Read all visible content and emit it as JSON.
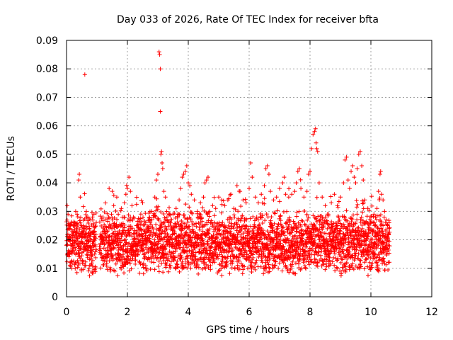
{
  "chart_data": {
    "type": "scatter",
    "title": "Day 033 of 2026, Rate Of TEC Index for receiver bfta",
    "xlabel": "GPS time / hours",
    "ylabel": "ROTI / TECUs",
    "xlim": [
      0,
      12
    ],
    "ylim": [
      0,
      0.09
    ],
    "xticks": [
      0,
      2,
      4,
      6,
      8,
      10,
      12
    ],
    "yticks": [
      0,
      0.01,
      0.02,
      0.03,
      0.04,
      0.05,
      0.06,
      0.07,
      0.08,
      0.09
    ],
    "xtick_labels": [
      "0",
      "2",
      "4",
      "6",
      "8",
      "10",
      "12"
    ],
    "ytick_labels": [
      "0",
      "0.01",
      "0.02",
      "0.03",
      "0.04",
      "0.05",
      "0.06",
      "0.07",
      "0.08",
      "0.09"
    ],
    "grid": true,
    "marker": "+",
    "color": "#ff0000",
    "data_gaps_hours": [
      [
        0.98,
        1.08
      ],
      [
        10.62,
        12
      ]
    ],
    "series": [
      {
        "name": "ROTI",
        "points": [
          [
            0.02,
            0.032
          ],
          [
            0.05,
            0.029
          ],
          [
            0.1,
            0.021
          ],
          [
            0.14,
            0.018
          ],
          [
            0.18,
            0.022
          ],
          [
            0.25,
            0.026
          ],
          [
            0.3,
            0.03
          ],
          [
            0.35,
            0.029
          ],
          [
            0.4,
            0.041
          ],
          [
            0.42,
            0.043
          ],
          [
            0.45,
            0.035
          ],
          [
            0.5,
            0.025
          ],
          [
            0.55,
            0.022
          ],
          [
            0.6,
            0.078
          ],
          [
            0.65,
            0.03
          ],
          [
            0.7,
            0.028
          ],
          [
            0.75,
            0.024
          ],
          [
            0.8,
            0.027
          ],
          [
            0.85,
            0.028
          ],
          [
            0.9,
            0.029
          ],
          [
            1.2,
            0.028
          ],
          [
            1.4,
            0.038
          ],
          [
            1.5,
            0.037
          ],
          [
            1.55,
            0.032
          ],
          [
            1.65,
            0.035
          ],
          [
            1.7,
            0.029
          ],
          [
            1.8,
            0.031
          ],
          [
            1.9,
            0.033
          ],
          [
            1.95,
            0.036
          ],
          [
            2.0,
            0.038
          ],
          [
            2.05,
            0.042
          ],
          [
            2.1,
            0.037
          ],
          [
            2.15,
            0.032
          ],
          [
            2.2,
            0.028
          ],
          [
            2.3,
            0.025
          ],
          [
            2.4,
            0.027
          ],
          [
            2.5,
            0.033
          ],
          [
            2.6,
            0.026
          ],
          [
            2.7,
            0.024
          ],
          [
            2.8,
            0.03
          ],
          [
            2.9,
            0.035
          ],
          [
            2.95,
            0.041
          ],
          [
            3.0,
            0.043
          ],
          [
            3.04,
            0.086
          ],
          [
            3.06,
            0.085
          ],
          [
            3.08,
            0.08
          ],
          [
            3.08,
            0.065
          ],
          [
            3.1,
            0.05
          ],
          [
            3.12,
            0.051
          ],
          [
            3.14,
            0.047
          ],
          [
            3.16,
            0.045
          ],
          [
            3.2,
            0.037
          ],
          [
            3.25,
            0.035
          ],
          [
            3.3,
            0.028
          ],
          [
            3.4,
            0.026
          ],
          [
            3.5,
            0.029
          ],
          [
            3.6,
            0.031
          ],
          [
            3.7,
            0.034
          ],
          [
            3.75,
            0.038
          ],
          [
            3.8,
            0.042
          ],
          [
            3.85,
            0.043
          ],
          [
            3.9,
            0.044
          ],
          [
            3.95,
            0.046
          ],
          [
            4.0,
            0.04
          ],
          [
            4.05,
            0.039
          ],
          [
            4.1,
            0.036
          ],
          [
            4.2,
            0.034
          ],
          [
            4.3,
            0.03
          ],
          [
            4.4,
            0.033
          ],
          [
            4.5,
            0.035
          ],
          [
            4.55,
            0.04
          ],
          [
            4.6,
            0.041
          ],
          [
            4.65,
            0.042
          ],
          [
            4.7,
            0.03
          ],
          [
            4.8,
            0.032
          ],
          [
            4.9,
            0.031
          ],
          [
            5.0,
            0.035
          ],
          [
            5.1,
            0.034
          ],
          [
            5.2,
            0.032
          ],
          [
            5.3,
            0.034
          ],
          [
            5.4,
            0.036
          ],
          [
            5.5,
            0.031
          ],
          [
            5.6,
            0.039
          ],
          [
            5.7,
            0.037
          ],
          [
            5.8,
            0.034
          ],
          [
            5.9,
            0.033
          ],
          [
            6.0,
            0.038
          ],
          [
            6.05,
            0.047
          ],
          [
            6.1,
            0.042
          ],
          [
            6.2,
            0.035
          ],
          [
            6.3,
            0.033
          ],
          [
            6.4,
            0.036
          ],
          [
            6.5,
            0.039
          ],
          [
            6.55,
            0.045
          ],
          [
            6.6,
            0.046
          ],
          [
            6.65,
            0.043
          ],
          [
            6.7,
            0.037
          ],
          [
            6.8,
            0.034
          ],
          [
            6.9,
            0.035
          ],
          [
            7.0,
            0.038
          ],
          [
            7.1,
            0.04
          ],
          [
            7.15,
            0.042
          ],
          [
            7.2,
            0.036
          ],
          [
            7.3,
            0.035
          ],
          [
            7.4,
            0.036
          ],
          [
            7.5,
            0.037
          ],
          [
            7.55,
            0.04
          ],
          [
            7.6,
            0.044
          ],
          [
            7.65,
            0.045
          ],
          [
            7.7,
            0.038
          ],
          [
            7.8,
            0.035
          ],
          [
            7.9,
            0.037
          ],
          [
            7.95,
            0.043
          ],
          [
            8.0,
            0.044
          ],
          [
            8.05,
            0.052
          ],
          [
            8.1,
            0.057
          ],
          [
            8.15,
            0.058
          ],
          [
            8.18,
            0.059
          ],
          [
            8.2,
            0.054
          ],
          [
            8.22,
            0.052
          ],
          [
            8.25,
            0.051
          ],
          [
            8.3,
            0.04
          ],
          [
            8.4,
            0.035
          ],
          [
            8.5,
            0.032
          ],
          [
            8.6,
            0.029
          ],
          [
            8.7,
            0.033
          ],
          [
            8.8,
            0.036
          ],
          [
            8.9,
            0.032
          ],
          [
            9.0,
            0.035
          ],
          [
            9.1,
            0.04
          ],
          [
            9.15,
            0.048
          ],
          [
            9.2,
            0.049
          ],
          [
            9.25,
            0.041
          ],
          [
            9.3,
            0.038
          ],
          [
            9.35,
            0.044
          ],
          [
            9.4,
            0.046
          ],
          [
            9.45,
            0.042
          ],
          [
            9.5,
            0.04
          ],
          [
            9.55,
            0.045
          ],
          [
            9.6,
            0.05
          ],
          [
            9.65,
            0.051
          ],
          [
            9.7,
            0.046
          ],
          [
            9.75,
            0.041
          ],
          [
            9.8,
            0.034
          ],
          [
            9.9,
            0.031
          ],
          [
            10.0,
            0.028
          ],
          [
            10.1,
            0.029
          ],
          [
            10.2,
            0.031
          ],
          [
            10.25,
            0.037
          ],
          [
            10.3,
            0.043
          ],
          [
            10.32,
            0.044
          ],
          [
            10.35,
            0.036
          ],
          [
            10.4,
            0.034
          ],
          [
            10.45,
            0.03
          ],
          [
            10.5,
            0.027
          ],
          [
            10.55,
            0.025
          ],
          [
            10.6,
            0.026
          ]
        ]
      }
    ]
  }
}
